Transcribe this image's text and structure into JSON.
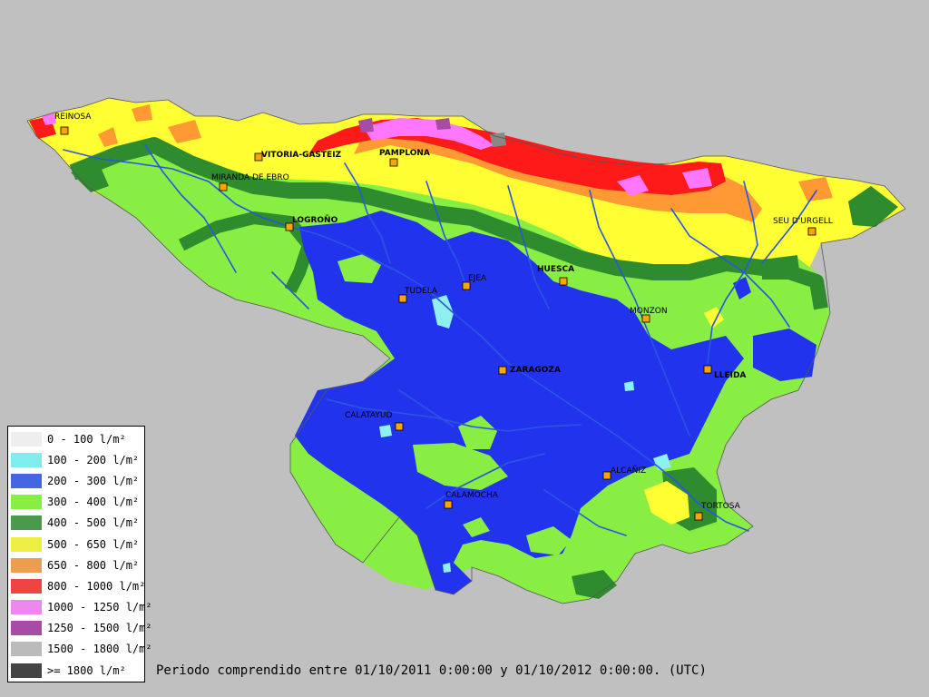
{
  "map": {
    "cities": [
      {
        "name": "REINOSA",
        "bold": false
      },
      {
        "name": "VITORIA-GASTEIZ",
        "bold": true
      },
      {
        "name": "PAMPLONA",
        "bold": true
      },
      {
        "name": "MIRANDA DE EBRO",
        "bold": false
      },
      {
        "name": "LOGROÑO",
        "bold": true
      },
      {
        "name": "SEU D'URGELL",
        "bold": false
      },
      {
        "name": "TUDELA",
        "bold": false
      },
      {
        "name": "EJEA",
        "bold": false
      },
      {
        "name": "HUESCA",
        "bold": true
      },
      {
        "name": "MONZON",
        "bold": false
      },
      {
        "name": "ZARAGOZA",
        "bold": true
      },
      {
        "name": "LLEIDA",
        "bold": true
      },
      {
        "name": "CALATAYUD",
        "bold": false
      },
      {
        "name": "ALCAÑIZ",
        "bold": false
      },
      {
        "name": "CALAMOCHA",
        "bold": false
      },
      {
        "name": "TORTOSA",
        "bold": false
      }
    ],
    "city_marker_color": "#ffa500"
  },
  "legend": {
    "items": [
      {
        "label": "0 - 100 l/m²",
        "color": "#eeeeee"
      },
      {
        "label": "100 - 200 l/m²",
        "color": "#7fecee"
      },
      {
        "label": "200 - 300 l/m²",
        "color": "#4466e4"
      },
      {
        "label": "300 - 400 l/m²",
        "color": "#88ee44"
      },
      {
        "label": "400 - 500 l/m²",
        "color": "#4b9a4b"
      },
      {
        "label": "500 - 650 l/m²",
        "color": "#eeee44"
      },
      {
        "label": "650 - 800 l/m²",
        "color": "#ee9c4e"
      },
      {
        "label": "800 - 1000 l/m²",
        "color": "#ee4444"
      },
      {
        "label": "1000 - 1250 l/m²",
        "color": "#ee88ee"
      },
      {
        "label": "1250 - 1500 l/m²",
        "color": "#a64ca6"
      },
      {
        "label": "1500 - 1800 l/m²",
        "color": "#bbbbbb"
      },
      {
        "label": ">= 1800 l/m²",
        "color": "#444444"
      }
    ]
  },
  "caption": "Periodo comprendido entre 01/10/2011 0:00:00 y 01/10/2012 0:00:00. (UTC)",
  "colors": {
    "background": "#c0c0c0",
    "river": "#2a55e0",
    "blue": "#2233ee",
    "light_green": "#88ee44",
    "dark_green": "#2e8b2e",
    "yellow": "#ffff33",
    "orange": "#ff9933",
    "red": "#ff1a1a",
    "pink": "#ff77ff",
    "purple": "#a64ca6",
    "cyan": "#8ff0f0"
  }
}
